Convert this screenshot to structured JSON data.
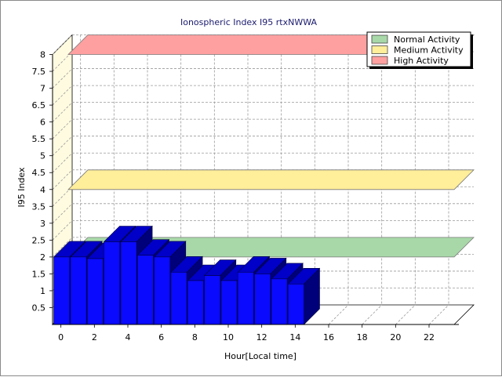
{
  "chart_data": {
    "type": "bar",
    "title": "Ionospheric Index I95 rtxNWWA",
    "xlabel": "Hour[Local time]",
    "ylabel": "I95 Index",
    "ylim": [
      0,
      8
    ],
    "xlim": [
      -0.5,
      23.5
    ],
    "x_ticks": [
      "0",
      "2",
      "4",
      "6",
      "8",
      "10",
      "12",
      "14",
      "16",
      "18",
      "20",
      "22"
    ],
    "y_ticks": [
      "0.5",
      "1",
      "1.5",
      "2",
      "2.5",
      "3",
      "3.5",
      "4",
      "4.5",
      "5",
      "5.5",
      "6",
      "6.5",
      "7",
      "7.5",
      "8"
    ],
    "grid": true,
    "three_d": true,
    "legend_position": "top-right",
    "series": [
      {
        "name": "I95",
        "color": "#0a0aff",
        "x": [
          0,
          1,
          2,
          3,
          4,
          5,
          6,
          7,
          8,
          9,
          10,
          11,
          12,
          13,
          14
        ],
        "values": [
          2.0,
          2.0,
          1.95,
          2.45,
          2.45,
          2.05,
          2.0,
          1.55,
          1.3,
          1.45,
          1.3,
          1.55,
          1.5,
          1.35,
          1.2
        ]
      }
    ],
    "bands": [
      {
        "name": "Normal Activity",
        "value": 2.0,
        "color": "#a8d8a8"
      },
      {
        "name": "Medium Activity",
        "value": 4.0,
        "color": "#ffee9a"
      },
      {
        "name": "High Activity",
        "value": 8.0,
        "color": "#ffa0a0"
      }
    ],
    "wall_color": "#fffbe0"
  }
}
